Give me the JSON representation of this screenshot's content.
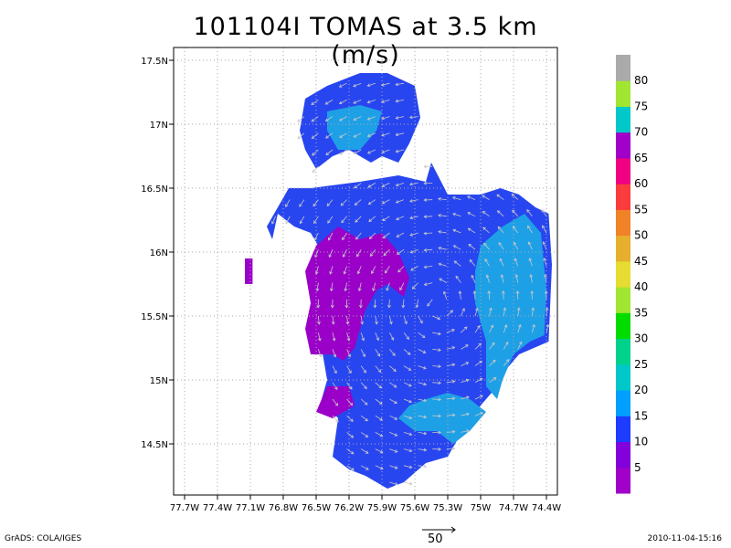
{
  "title": "101104I TOMAS at 3.5 km (m/s)",
  "footer": {
    "left": "GrADS: COLA/IGES",
    "right": "2010-11-04-15:16"
  },
  "reference_vector": {
    "label": "50",
    "value": 50
  },
  "chart_data": {
    "type": "heatmap",
    "title": "101104I TOMAS at 3.5 km (m/s)",
    "xlim": [
      -77.8,
      -74.3
    ],
    "ylim": [
      14.1,
      17.6
    ],
    "x_ticks": [
      {
        "v": -77.7,
        "label": "77.7W"
      },
      {
        "v": -77.4,
        "label": "77.4W"
      },
      {
        "v": -77.1,
        "label": "77.1W"
      },
      {
        "v": -76.8,
        "label": "76.8W"
      },
      {
        "v": -76.5,
        "label": "76.5W"
      },
      {
        "v": -76.2,
        "label": "76.2W"
      },
      {
        "v": -75.9,
        "label": "75.9W"
      },
      {
        "v": -75.6,
        "label": "75.6W"
      },
      {
        "v": -75.3,
        "label": "75.3W"
      },
      {
        "v": -75.0,
        "label": "75W"
      },
      {
        "v": -74.7,
        "label": "74.7W"
      },
      {
        "v": -74.4,
        "label": "74.4W"
      }
    ],
    "y_ticks": [
      {
        "v": 14.5,
        "label": "14.5N"
      },
      {
        "v": 15.0,
        "label": "15N"
      },
      {
        "v": 15.5,
        "label": "15.5N"
      },
      {
        "v": 16.0,
        "label": "16N"
      },
      {
        "v": 16.5,
        "label": "16.5N"
      },
      {
        "v": 17.0,
        "label": "17N"
      },
      {
        "v": 17.5,
        "label": "17.5N"
      }
    ],
    "grid": true,
    "colorbar": {
      "colors": [
        "#a000c8",
        "#8200dc",
        "#1e3cff",
        "#00a0ff",
        "#00c8c8",
        "#00d28c",
        "#00dc00",
        "#a0e632",
        "#e6dc32",
        "#e6af2d",
        "#f08228",
        "#fa3c3c",
        "#f00082",
        "#a000c8",
        "#00c8c8",
        "#a0e632",
        "#aaaaaa"
      ],
      "labels": [
        "5",
        "10",
        "15",
        "20",
        "25",
        "30",
        "35",
        "40",
        "45",
        "50",
        "55",
        "60",
        "65",
        "70",
        "75",
        "80"
      ]
    },
    "regions": [
      {
        "name": "main-15-20",
        "level": 15,
        "points": [
          [
            -76.55,
            16.5
          ],
          [
            -76.1,
            16.55
          ],
          [
            -75.75,
            16.6
          ],
          [
            -75.5,
            16.55
          ],
          [
            -75.45,
            16.7
          ],
          [
            -75.3,
            16.45
          ],
          [
            -75.0,
            16.45
          ],
          [
            -74.82,
            16.5
          ],
          [
            -74.65,
            16.45
          ],
          [
            -74.5,
            16.35
          ],
          [
            -74.38,
            16.3
          ],
          [
            -74.35,
            15.9
          ],
          [
            -74.38,
            15.3
          ],
          [
            -74.65,
            15.2
          ],
          [
            -74.75,
            15.1
          ],
          [
            -74.9,
            14.9
          ],
          [
            -75.1,
            14.7
          ],
          [
            -75.2,
            14.55
          ],
          [
            -75.3,
            14.4
          ],
          [
            -75.5,
            14.35
          ],
          [
            -75.7,
            14.2
          ],
          [
            -75.85,
            14.15
          ],
          [
            -76.05,
            14.25
          ],
          [
            -76.2,
            14.3
          ],
          [
            -76.35,
            14.4
          ],
          [
            -76.3,
            14.7
          ],
          [
            -76.45,
            14.85
          ],
          [
            -76.4,
            15.0
          ],
          [
            -76.45,
            15.25
          ],
          [
            -76.4,
            15.55
          ],
          [
            -76.35,
            15.85
          ],
          [
            -76.55,
            16.15
          ],
          [
            -76.45,
            16.35
          ]
        ]
      },
      {
        "name": "north-15",
        "level": 15,
        "points": [
          [
            -76.6,
            17.2
          ],
          [
            -76.4,
            17.3
          ],
          [
            -76.1,
            17.4
          ],
          [
            -75.85,
            17.4
          ],
          [
            -75.6,
            17.3
          ],
          [
            -75.55,
            17.05
          ],
          [
            -75.65,
            16.85
          ],
          [
            -75.75,
            16.7
          ],
          [
            -75.9,
            16.75
          ],
          [
            -76.0,
            16.7
          ],
          [
            -76.2,
            16.8
          ],
          [
            -76.35,
            16.75
          ],
          [
            -76.5,
            16.65
          ],
          [
            -76.6,
            16.8
          ],
          [
            -76.65,
            16.95
          ]
        ]
      },
      {
        "name": "west-arm-15",
        "level": 15,
        "points": [
          [
            -76.75,
            16.5
          ],
          [
            -76.55,
            16.5
          ],
          [
            -76.4,
            16.4
          ],
          [
            -76.55,
            16.15
          ],
          [
            -76.7,
            16.2
          ],
          [
            -76.85,
            16.3
          ],
          [
            -76.9,
            16.1
          ],
          [
            -76.95,
            16.2
          ]
        ]
      },
      {
        "name": "fringe-purple",
        "level": 5,
        "points": [
          [
            -76.3,
            16.2
          ],
          [
            -76.1,
            16.1
          ],
          [
            -75.9,
            16.15
          ],
          [
            -75.75,
            16.0
          ],
          [
            -75.65,
            15.8
          ],
          [
            -75.7,
            15.65
          ],
          [
            -75.85,
            15.75
          ],
          [
            -75.95,
            15.7
          ],
          [
            -76.05,
            15.55
          ],
          [
            -76.1,
            15.4
          ],
          [
            -76.15,
            15.25
          ],
          [
            -76.25,
            15.15
          ],
          [
            -76.35,
            15.2
          ],
          [
            -76.55,
            15.2
          ],
          [
            -76.6,
            15.4
          ],
          [
            -76.55,
            15.6
          ],
          [
            -76.6,
            15.85
          ],
          [
            -76.5,
            16.05
          ]
        ]
      },
      {
        "name": "fringe-purple-south",
        "level": 5,
        "points": [
          [
            -76.4,
            14.95
          ],
          [
            -76.2,
            14.95
          ],
          [
            -76.15,
            14.8
          ],
          [
            -76.35,
            14.7
          ],
          [
            -76.5,
            14.75
          ]
        ]
      },
      {
        "name": "isolated-purple",
        "level": 5,
        "points": [
          [
            -77.15,
            15.95
          ],
          [
            -77.08,
            15.95
          ],
          [
            -77.08,
            15.75
          ],
          [
            -77.15,
            15.75
          ]
        ]
      },
      {
        "name": "east-cyan",
        "level": 20,
        "points": [
          [
            -75.0,
            16.05
          ],
          [
            -74.8,
            16.2
          ],
          [
            -74.6,
            16.3
          ],
          [
            -74.45,
            16.15
          ],
          [
            -74.4,
            15.7
          ],
          [
            -74.42,
            15.35
          ],
          [
            -74.55,
            15.3
          ],
          [
            -74.7,
            15.2
          ],
          [
            -74.8,
            15.0
          ],
          [
            -74.85,
            14.85
          ],
          [
            -74.95,
            14.95
          ],
          [
            -74.95,
            15.3
          ],
          [
            -75.05,
            15.6
          ],
          [
            -75.05,
            15.85
          ]
        ]
      },
      {
        "name": "south-cyan",
        "level": 20,
        "points": [
          [
            -75.5,
            14.85
          ],
          [
            -75.3,
            14.9
          ],
          [
            -75.1,
            14.85
          ],
          [
            -74.95,
            14.75
          ],
          [
            -75.1,
            14.6
          ],
          [
            -75.25,
            14.5
          ],
          [
            -75.4,
            14.6
          ],
          [
            -75.6,
            14.6
          ],
          [
            -75.75,
            14.7
          ],
          [
            -75.65,
            14.8
          ]
        ]
      },
      {
        "name": "north-cyan",
        "level": 20,
        "points": [
          [
            -76.4,
            17.1
          ],
          [
            -76.1,
            17.15
          ],
          [
            -75.9,
            17.1
          ],
          [
            -75.95,
            16.95
          ],
          [
            -76.1,
            16.8
          ],
          [
            -76.3,
            16.8
          ],
          [
            -76.4,
            16.95
          ]
        ]
      }
    ]
  }
}
